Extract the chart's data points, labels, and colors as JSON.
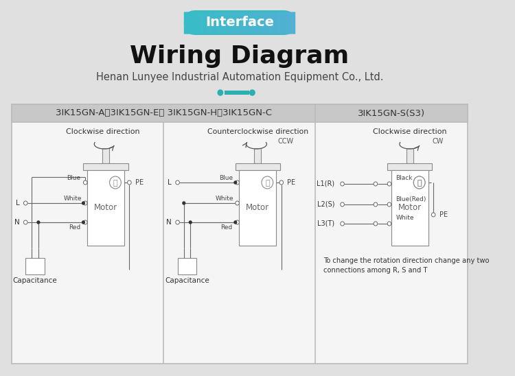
{
  "bg_color": "#e0e0e0",
  "title": "Wiring Diagram",
  "subtitle": "Henan Lunyee Industrial Automation Equipment Co., Ltd.",
  "interface_text": "Interface",
  "header_left": "3IK15GN-A、3IK15GN-E、 3IK15GN-H、3IK15GN-C",
  "header_right": "3IK15GN-S(S3)",
  "dot_color": "#2ab0b0",
  "line_color": "#666666",
  "teal1": "#2ec4c4",
  "teal2": "#4ab8d0"
}
